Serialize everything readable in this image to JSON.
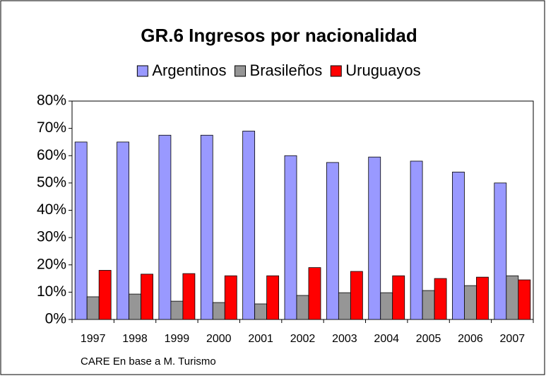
{
  "chart_data": {
    "type": "bar",
    "title": "GR.6 Ingresos por nacionalidad",
    "categories": [
      "1997",
      "1998",
      "1999",
      "2000",
      "2001",
      "2002",
      "2003",
      "2004",
      "2005",
      "2006",
      "2007"
    ],
    "series": [
      {
        "name": "Argentinos",
        "color": "#9999ff",
        "values": [
          65,
          65,
          67.5,
          67.5,
          69,
          60,
          57.5,
          59.5,
          58,
          54,
          50
        ]
      },
      {
        "name": "Brasileños",
        "color": "#969696",
        "values": [
          8.3,
          9.3,
          6.7,
          6.2,
          5.7,
          8.8,
          9.8,
          9.8,
          10.6,
          12.4,
          16
        ]
      },
      {
        "name": "Uruguayos",
        "color": "#ff0000",
        "values": [
          18,
          16.6,
          16.8,
          16,
          16,
          19,
          17.6,
          16,
          15,
          15.5,
          14.5
        ]
      }
    ],
    "ylim": [
      0,
      80
    ],
    "yticks": [
      {
        "value": 0,
        "label": "0%"
      },
      {
        "value": 10,
        "label": "10%"
      },
      {
        "value": 20,
        "label": "20%"
      },
      {
        "value": 30,
        "label": "30%"
      },
      {
        "value": 40,
        "label": "40%"
      },
      {
        "value": 50,
        "label": "50%"
      },
      {
        "value": 60,
        "label": "60%"
      },
      {
        "value": 70,
        "label": "70%"
      },
      {
        "value": 80,
        "label": "80%"
      }
    ],
    "legend": "top",
    "note": "CARE En base a M. Turismo"
  }
}
